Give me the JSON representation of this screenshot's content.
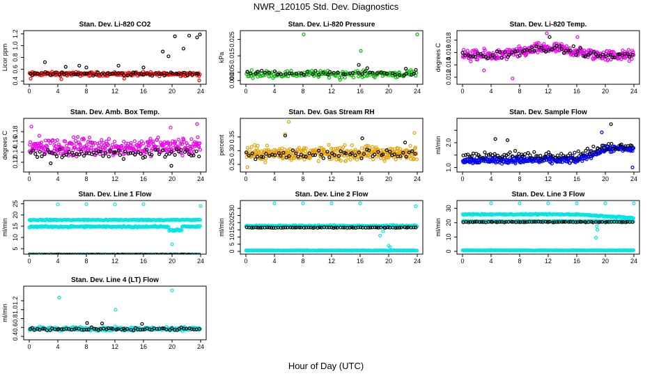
{
  "title": "NWR_120105  Std. Dev. Diagnostics",
  "x_axis_title": "Hour of Day (UTC)",
  "chart_data": [
    {
      "type": "scatter",
      "title": "Stan. Dev. Li-820 CO2",
      "ylabel": "Licor ppm",
      "xlim": [
        0,
        24
      ],
      "ylim": [
        0.38,
        1.22
      ],
      "xticks": [
        0,
        4,
        8,
        12,
        16,
        20,
        24
      ],
      "yticks": [
        0.4,
        0.6,
        0.8,
        1.0,
        1.2
      ],
      "ytick_labels": [
        "0.4",
        "0.6",
        "0.8",
        "1.0",
        "1.2"
      ],
      "series": [
        {
          "color": "#ff0000",
          "band": {
            "center": 0.52,
            "spread": 0.05,
            "n": 220
          },
          "outliers": [
            [
              0.2,
              0.44
            ],
            [
              4.5,
              0.43
            ],
            [
              13.3,
              0.44
            ],
            [
              23.8,
              0.41
            ]
          ]
        },
        {
          "color": "#000000",
          "band": {
            "center": 0.52,
            "spread": 0.05,
            "n": 60
          },
          "outliers": [
            [
              2.2,
              0.72
            ],
            [
              5.1,
              0.64
            ],
            [
              7.0,
              0.66
            ],
            [
              8.0,
              0.63
            ],
            [
              12.5,
              0.66
            ],
            [
              16.0,
              0.63
            ],
            [
              18.7,
              0.9
            ],
            [
              19.5,
              0.82
            ],
            [
              20.4,
              1.16
            ],
            [
              21.6,
              0.95
            ],
            [
              22.4,
              1.17
            ],
            [
              23.5,
              1.14
            ],
            [
              23.9,
              1.19
            ]
          ]
        }
      ]
    },
    {
      "type": "scatter",
      "title": "Stan. Dev. Li-820 Pressure",
      "ylabel": "kPa",
      "xlim": [
        0,
        24
      ],
      "ylim": [
        -0.001,
        0.029
      ],
      "xticks": [
        0,
        4,
        8,
        12,
        16,
        20,
        24
      ],
      "yticks": [
        0.0,
        0.005,
        0.015,
        0.025
      ],
      "ytick_labels": [
        "0.000",
        "0.005",
        "0.015",
        "0.025"
      ],
      "series": [
        {
          "color": "#00bb00",
          "band": {
            "center": 0.004,
            "spread": 0.003,
            "n": 180
          },
          "band2": {
            "x0": 13.5,
            "x1": 24,
            "center": 0.0085,
            "spread": 0.004,
            "n": 120
          },
          "outliers": [
            [
              8.1,
              0.028
            ],
            [
              16.1,
              0.018
            ],
            [
              24.0,
              0.028
            ],
            [
              13.2,
              0.0005
            ]
          ]
        },
        {
          "color": "#000000",
          "band": {
            "center": 0.0045,
            "spread": 0.002,
            "n": 45
          },
          "outliers": [
            [
              15.8,
              0.0095
            ],
            [
              17.0,
              0.0075
            ],
            [
              22.4,
              0.0072
            ],
            [
              23.8,
              0.0065
            ]
          ]
        }
      ]
    },
    {
      "type": "scatter",
      "title": "Stan. Dev. Li-820 Temp.",
      "ylabel": "degrees C",
      "xlim": [
        0,
        24
      ],
      "ylim": [
        0.0112,
        0.0192
      ],
      "xticks": [
        0,
        4,
        8,
        12,
        16,
        20,
        24
      ],
      "yticks": [
        0.012,
        0.014,
        0.016,
        0.018
      ],
      "ytick_labels": [
        "0.012",
        "0.014",
        "0.016",
        "0.018"
      ],
      "series": [
        {
          "color": "#ee00ee",
          "band": {
            "center": 0.0155,
            "spread": 0.0013,
            "n": 320,
            "hump": 0.0012
          },
          "outliers": [
            [
              7.0,
              0.0118
            ],
            [
              11.8,
              0.0191
            ],
            [
              16.1,
              0.0185
            ],
            [
              3.0,
              0.0131
            ]
          ]
        },
        {
          "color": "#000000",
          "band": {
            "center": 0.0155,
            "spread": 0.001,
            "n": 70,
            "hump": 0.0012
          },
          "outliers": [
            [
              12.2,
              0.0185
            ]
          ]
        }
      ]
    },
    {
      "type": "scatter",
      "title": "Stan. Dev. Amb. Box Temp.",
      "ylabel": "degrees C",
      "xlim": [
        0,
        24
      ],
      "ylim": [
        0.105,
        0.202
      ],
      "xticks": [
        0,
        4,
        8,
        12,
        16,
        20,
        24
      ],
      "yticks": [
        0.12,
        0.14,
        0.16,
        0.18
      ],
      "ytick_labels": [
        "0.12",
        "0.14",
        "0.16",
        "0.18"
      ],
      "series": [
        {
          "color": "#ee00ee",
          "band": {
            "center": 0.15,
            "spread": 0.026,
            "n": 330
          },
          "outliers": [
            [
              0.3,
              0.19
            ],
            [
              23.5,
              0.195
            ],
            [
              19.8,
              0.188
            ]
          ]
        },
        {
          "color": "#000000",
          "band": {
            "center": 0.138,
            "spread": 0.015,
            "n": 70
          },
          "outliers": [
            [
              19.9,
              0.113
            ],
            [
              3.0,
              0.118
            ]
          ]
        }
      ]
    },
    {
      "type": "scatter",
      "title": "Stan. Dev. Gas Stream RH",
      "ylabel": "percent",
      "xlim": [
        0,
        24
      ],
      "ylim": [
        0.23,
        0.41
      ],
      "xticks": [
        0,
        4,
        8,
        12,
        16,
        20,
        24
      ],
      "yticks": [
        0.25,
        0.3,
        0.35
      ],
      "ytick_labels": [
        "0.25",
        "0.30",
        "0.35"
      ],
      "series": [
        {
          "color": "#e8a000",
          "band": {
            "center": 0.29,
            "spread": 0.038,
            "n": 340
          },
          "outliers": [
            [
              6.0,
              0.405
            ],
            [
              5.5,
              0.36
            ],
            [
              23.6,
              0.365
            ],
            [
              0.2,
              0.24
            ]
          ]
        },
        {
          "color": "#000000",
          "band": {
            "center": 0.288,
            "spread": 0.022,
            "n": 60
          },
          "outliers": [
            [
              5.5,
              0.355
            ],
            [
              16.3,
              0.345
            ],
            [
              22.3,
              0.33
            ]
          ]
        }
      ]
    },
    {
      "type": "scatter",
      "title": "Stan. Dev. Sample Flow",
      "ylabel": "ml/min",
      "xlim": [
        0,
        24
      ],
      "ylim": [
        0.9,
        2.9
      ],
      "xticks": [
        0,
        4,
        8,
        12,
        16,
        20,
        24
      ],
      "yticks": [
        1.0,
        1.5,
        2.0,
        2.5
      ],
      "ytick_labels": [
        "1.0",
        "",
        "2.0",
        ""
      ],
      "series": [
        {
          "color": "#0000ee",
          "band": {
            "center": 1.3,
            "spread": 0.2,
            "n": 340,
            "rise": 0.45
          },
          "outliers": [
            [
              19.5,
              2.42
            ],
            [
              23.8,
              1.0
            ]
          ]
        },
        {
          "color": "#000000",
          "band": {
            "center": 1.5,
            "spread": 0.22,
            "n": 80,
            "rise": 0.35
          },
          "outliers": [
            [
              20.8,
              2.75
            ],
            [
              4.6,
              2.15
            ],
            [
              6.3,
              2.1
            ]
          ]
        }
      ]
    },
    {
      "type": "scatter",
      "title": "Stan. Dev. Line 1 Flow",
      "ylabel": "ml/min",
      "xlim": [
        0,
        24
      ],
      "ylim": [
        3.5,
        25.5
      ],
      "xticks": [
        0,
        4,
        8,
        12,
        16,
        20,
        24
      ],
      "yticks": [
        5,
        10,
        15,
        20,
        25
      ],
      "ytick_labels": [
        "5",
        "10",
        "15",
        "20",
        "25"
      ],
      "series": [
        {
          "color": "#00e5e5",
          "band": {
            "center": 17.8,
            "spread": 0.35,
            "n": 240
          },
          "outliers": [
            [
              4.0,
              24.8
            ],
            [
              8.0,
              24.8
            ],
            [
              12.0,
              24.8
            ],
            [
              16.0,
              24.8
            ],
            [
              20.0,
              7.0
            ],
            [
              24.0,
              24.0
            ]
          ]
        },
        {
          "color": "#00e5e5",
          "band": {
            "center": 14.8,
            "spread": 0.5,
            "n": 240,
            "dip": [
              20.5,
              13.2
            ]
          }
        },
        {
          "color": "#00e5e5",
          "band": {
            "center": 2.4,
            "spread": 0.15,
            "n": 150
          }
        },
        {
          "color": "#000000",
          "band": {
            "center": 2.4,
            "spread": 0.12,
            "n": 75
          }
        }
      ]
    },
    {
      "type": "scatter",
      "title": "Stan. Dev. Line 2 Flow",
      "ylabel": "ml/min",
      "xlim": [
        0,
        24
      ],
      "ylim": [
        -0.5,
        34
      ],
      "xticks": [
        0,
        4,
        8,
        12,
        16,
        20,
        24
      ],
      "yticks": [
        0,
        5,
        10,
        15,
        20,
        25,
        30
      ],
      "ytick_labels": [
        "0",
        "5",
        "10",
        "15",
        "20",
        "25",
        "30"
      ],
      "series": [
        {
          "color": "#00e5e5",
          "band": {
            "center": 17.8,
            "spread": 0.6,
            "n": 240
          },
          "outliers": [
            [
              4.0,
              33.5
            ],
            [
              8.0,
              33.5
            ],
            [
              12.0,
              33.5
            ],
            [
              16.0,
              33.5
            ],
            [
              18.8,
              11.0
            ],
            [
              19.2,
              14.0
            ],
            [
              20.0,
              4.0
            ],
            [
              20.2,
              3.0
            ],
            [
              20.6,
              18.5
            ],
            [
              23.8,
              31.5
            ]
          ]
        },
        {
          "color": "#00e5e5",
          "band": {
            "center": 0.6,
            "spread": 0.25,
            "n": 240
          }
        },
        {
          "color": "#000000",
          "band": {
            "center": 16.6,
            "spread": 0.35,
            "n": 75
          }
        }
      ]
    },
    {
      "type": "scatter",
      "title": "Stan. Dev. Line 3 Flow",
      "ylabel": "ml/min",
      "xlim": [
        0,
        24
      ],
      "ylim": [
        -0.5,
        34
      ],
      "xticks": [
        0,
        4,
        8,
        12,
        16,
        20,
        24
      ],
      "yticks": [
        0,
        10,
        20,
        30
      ],
      "ytick_labels": [
        "0",
        "10",
        "20",
        "30"
      ],
      "series": [
        {
          "color": "#00e5e5",
          "band": {
            "center": 25.8,
            "spread": 0.6,
            "n": 240,
            "fall": 2.5
          },
          "outliers": [
            [
              4.0,
              33.5
            ],
            [
              8.0,
              33.5
            ],
            [
              12.0,
              33.5
            ],
            [
              16.0,
              33.5
            ],
            [
              18.8,
              17.5
            ],
            [
              18.9,
              15.0
            ],
            [
              18.7,
              9.5
            ],
            [
              20.0,
              33.5
            ],
            [
              24.0,
              33.5
            ]
          ]
        },
        {
          "color": "#00e5e5",
          "band": {
            "center": 21.0,
            "spread": 0.5,
            "n": 200
          }
        },
        {
          "color": "#00e5e5",
          "band": {
            "center": 0.7,
            "spread": 0.3,
            "n": 240
          }
        },
        {
          "color": "#000000",
          "band": {
            "center": 20.5,
            "spread": 0.35,
            "n": 75
          }
        }
      ]
    },
    {
      "type": "scatter",
      "title": "Stan. Dev. Line 4 (LT) Flow",
      "ylabel": "ml/min",
      "xlim": [
        0,
        24
      ],
      "ylim": [
        0.37,
        1.48
      ],
      "xticks": [
        0,
        4,
        8,
        12,
        16,
        20,
        24
      ],
      "yticks": [
        0.4,
        0.6,
        0.8,
        1.0,
        1.2
      ],
      "ytick_labels": [
        "0.4",
        "0.6",
        "0.8",
        "1.0",
        "1.2"
      ],
      "series": [
        {
          "color": "#00e5e5",
          "band": {
            "center": 0.57,
            "spread": 0.06,
            "n": 320
          },
          "outliers": [
            [
              4.2,
              1.27
            ],
            [
              12.1,
              1.0
            ],
            [
              20.0,
              1.43
            ]
          ]
        },
        {
          "color": "#000000",
          "band": {
            "center": 0.56,
            "spread": 0.05,
            "n": 70
          },
          "outliers": [
            [
              8.1,
              0.7
            ],
            [
              10.2,
              0.69
            ],
            [
              15.8,
              0.68
            ]
          ]
        }
      ]
    }
  ]
}
